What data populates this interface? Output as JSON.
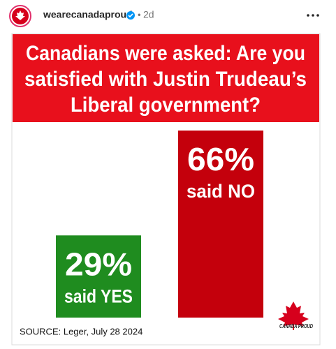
{
  "post": {
    "username": "wearecanadaproud",
    "time": "2d"
  },
  "graphic": {
    "title_lines": [
      "Canadians were asked: Are you",
      "satisfied with Justin Trudeau’s",
      "Liberal government?"
    ],
    "bars": [
      {
        "value": 29,
        "value_label": "29%",
        "caption": "said YES",
        "color": "#1f8c1f"
      },
      {
        "value": 66,
        "value_label": "66%",
        "caption": "said NO",
        "color": "#c4000c"
      }
    ],
    "source": "SOURCE: Leger, July 28 2024",
    "logo": "CANADA PROUD"
  }
}
